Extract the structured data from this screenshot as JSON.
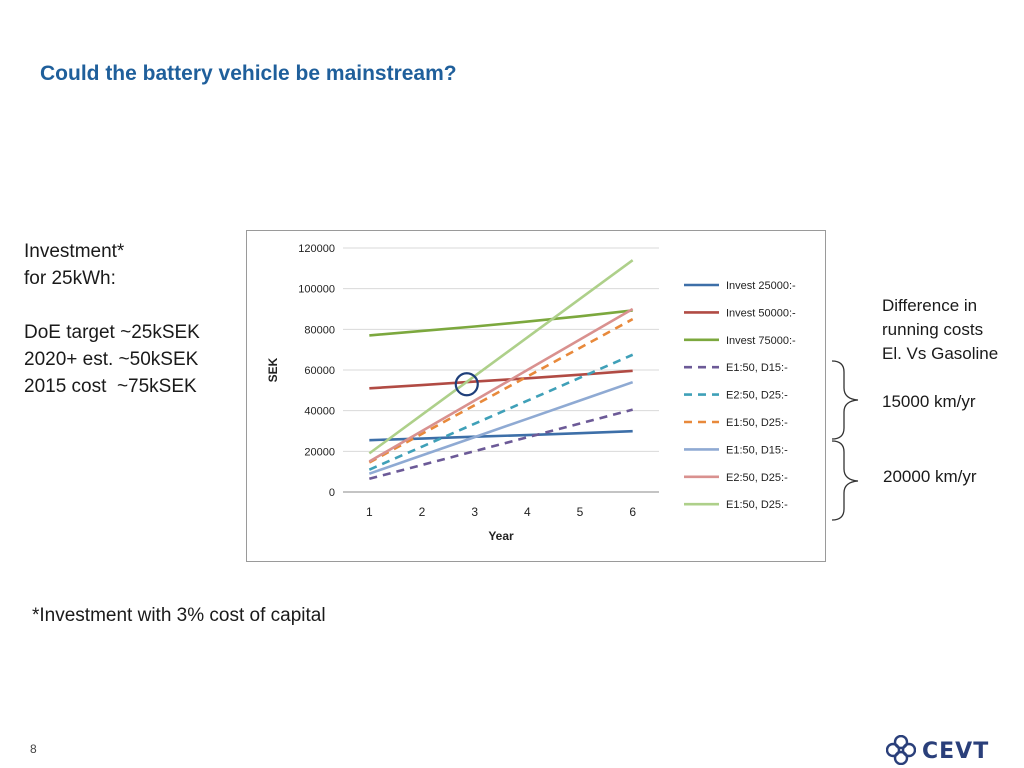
{
  "title": "Could the battery vehicle be mainstream?",
  "left_notes": {
    "line1": "Investment*",
    "line2": "for 25kWh:",
    "line3": "DoE target ~25kSEK",
    "line4": "2020+ est. ~50kSEK",
    "line5": "2015 cost  ~75kSEK"
  },
  "right_notes": {
    "line1": "Difference in",
    "line2": "running costs",
    "line3": "El. Vs Gasoline",
    "km1": "15000 km/yr",
    "km2": "20000 km/yr"
  },
  "footnote": "*Investment with 3% cost of capital",
  "page_number": "8",
  "logo_text": "CEVT",
  "colors": {
    "title": "#1f5f9b",
    "logo": "#2a3f7a"
  },
  "chart_data": {
    "type": "line",
    "xlabel": "Year",
    "ylabel": "SEK",
    "x": [
      1,
      2,
      3,
      4,
      5,
      6
    ],
    "ylim": [
      0,
      120000
    ],
    "yticks": [
      0,
      20000,
      40000,
      60000,
      80000,
      100000,
      120000
    ],
    "grid": true,
    "legend_position": "right",
    "highlight_marker": {
      "x": 2.85,
      "y": 53000
    },
    "series": [
      {
        "name": "Invest 25000:-",
        "color": "#3d6fa8",
        "dash": false,
        "values": [
          25500,
          26300,
          27200,
          28000,
          28900,
          29900
        ]
      },
      {
        "name": "Invest 50000:-",
        "color": "#b14b44",
        "dash": false,
        "values": [
          51000,
          52600,
          54300,
          55900,
          57700,
          59600
        ]
      },
      {
        "name": "Invest 75000:-",
        "color": "#7ca83e",
        "dash": false,
        "values": [
          77000,
          79200,
          81400,
          83800,
          86400,
          89300
        ]
      },
      {
        "name": "E1:50, D15:-",
        "color": "#6c5a97",
        "dash": true,
        "values": [
          6500,
          13300,
          20100,
          26900,
          33700,
          40500
        ]
      },
      {
        "name": "E2:50, D25:-",
        "color": "#3fa0b8",
        "dash": true,
        "values": [
          11000,
          22300,
          33600,
          44900,
          56200,
          67500
        ]
      },
      {
        "name": "E1:50, D25:-",
        "color": "#e8893b",
        "dash": true,
        "values": [
          14500,
          28600,
          42700,
          56800,
          70900,
          85000
        ]
      },
      {
        "name": "E1:50, D15:-",
        "color": "#8faad3",
        "dash": false,
        "values": [
          9000,
          18000,
          27000,
          36000,
          45000,
          54000
        ]
      },
      {
        "name": "E2:50, D25:-",
        "color": "#d9918f",
        "dash": false,
        "values": [
          15000,
          30000,
          45000,
          60000,
          75000,
          90000
        ]
      },
      {
        "name": "E1:50, D25:-",
        "color": "#aed08a",
        "dash": false,
        "values": [
          19000,
          38000,
          57000,
          76000,
          95000,
          114000
        ]
      }
    ]
  }
}
